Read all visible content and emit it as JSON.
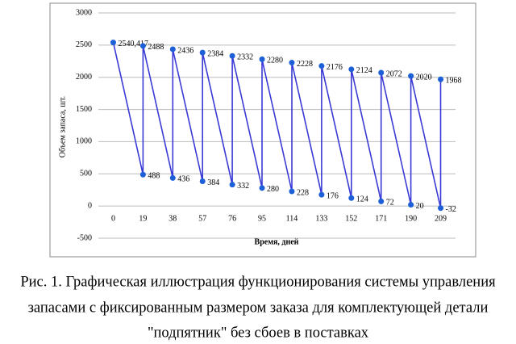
{
  "chart_data": {
    "type": "line",
    "x_label": "Время, дней",
    "y_label": "Объем запаса, шт.",
    "caption": [
      "Рис. 1. Графическая иллюстрация функционирования системы управления",
      "запасами с фиксированным размером заказа для комплектующей детали",
      "\"подпятник\" без сбоев в поставках"
    ],
    "x": [
      0,
      19,
      19,
      38,
      38,
      57,
      57,
      76,
      76,
      95,
      95,
      114,
      114,
      133,
      133,
      152,
      152,
      171,
      171,
      190,
      190,
      209,
      209
    ],
    "values": [
      2540.417,
      488,
      2488,
      436,
      2436,
      384,
      2384,
      332,
      2332,
      280,
      2280,
      228,
      2228,
      176,
      2176,
      124,
      2124,
      72,
      2072,
      20,
      2020,
      -32,
      1968
    ],
    "value_labels": [
      "2540,417",
      "488",
      "2488",
      "436",
      "2436",
      "384",
      "2384",
      "332",
      "2332",
      "280",
      "2280",
      "228",
      "2228",
      "176",
      "2176",
      "124",
      "2124",
      "72",
      "2072",
      "20",
      "2020",
      "-32",
      "1968"
    ],
    "color": "#3a3ad6",
    "marker_color": "#1c5fd6",
    "xlim": [
      -9.5,
      218.5
    ],
    "xticks": [
      0,
      19,
      38,
      57,
      76,
      95,
      114,
      133,
      152,
      171,
      190,
      209
    ],
    "ylim": [
      -500,
      3000
    ],
    "yticks": [
      -500,
      0,
      500,
      1000,
      1500,
      2000,
      2500,
      3000
    ],
    "grid": true
  }
}
